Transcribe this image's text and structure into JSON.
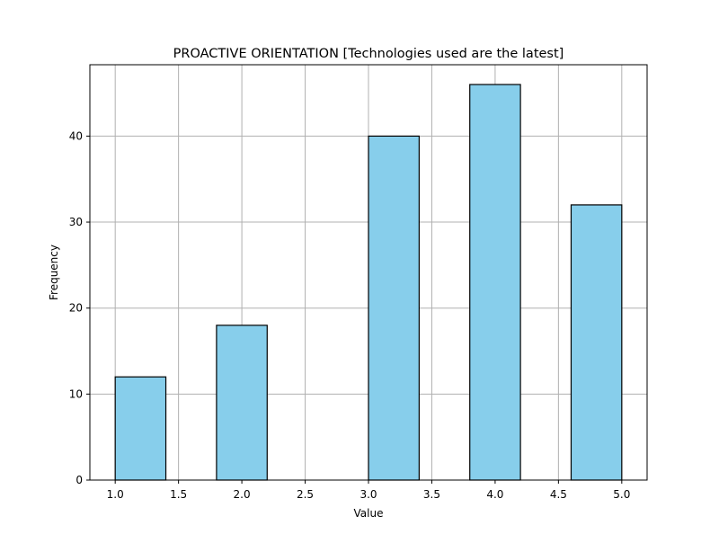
{
  "chart_data": {
    "type": "bar",
    "title": "PROACTIVE ORIENTATION [Technologies used are the latest]",
    "xlabel": "Value",
    "ylabel": "Frequency",
    "bins": [
      {
        "start": 1.0,
        "end": 1.4,
        "value": 12
      },
      {
        "start": 1.4,
        "end": 1.8,
        "value": 0
      },
      {
        "start": 1.8,
        "end": 2.2,
        "value": 18
      },
      {
        "start": 2.2,
        "end": 2.6,
        "value": 0
      },
      {
        "start": 2.6,
        "end": 3.0,
        "value": 0
      },
      {
        "start": 3.0,
        "end": 3.4,
        "value": 40
      },
      {
        "start": 3.4,
        "end": 3.8,
        "value": 0
      },
      {
        "start": 3.8,
        "end": 4.2,
        "value": 46
      },
      {
        "start": 4.2,
        "end": 4.6,
        "value": 0
      },
      {
        "start": 4.6,
        "end": 5.0,
        "value": 32
      }
    ],
    "xlim": [
      0.8,
      5.2
    ],
    "ylim": [
      0,
      48.3
    ],
    "xticks": [
      1.0,
      1.5,
      2.0,
      2.5,
      3.0,
      3.5,
      4.0,
      4.5,
      5.0
    ],
    "xtick_labels": [
      "1.0",
      "1.5",
      "2.0",
      "2.5",
      "3.0",
      "3.5",
      "4.0",
      "4.5",
      "5.0"
    ],
    "yticks": [
      0,
      10,
      20,
      30,
      40
    ],
    "ytick_labels": [
      "0",
      "10",
      "20",
      "30",
      "40"
    ],
    "grid": true,
    "colors": {
      "bar_fill": "#87CEEB",
      "bar_edge": "#000000",
      "grid": "#b0b0b0",
      "axis": "#000000"
    }
  }
}
